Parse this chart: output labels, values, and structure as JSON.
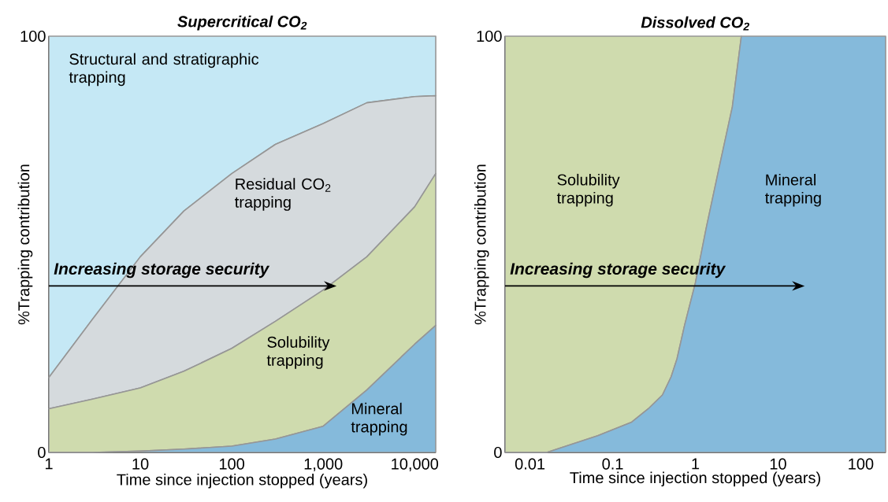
{
  "chart_data": [
    {
      "type": "area",
      "title": "Supercritical CO$_{2}$",
      "xlabel": "Time since injection stopped (years)",
      "ylabel": "%Trapping contribution",
      "stacked": true,
      "log": "x",
      "x": [
        1,
        3,
        10,
        30,
        100,
        300,
        1000,
        3000,
        10000,
        17000
      ],
      "xlim": [
        1,
        17000
      ],
      "xticks": [
        1,
        10,
        100,
        {
          "value": 1000,
          "label": "1,000"
        },
        {
          "value": 10000,
          "label": "10,000"
        }
      ],
      "ylim": [
        0,
        100
      ],
      "yticks": [
        0,
        100
      ],
      "annotations": [
        "Increasing storage security"
      ],
      "series": [
        {
          "name": "Mineral trapping",
          "color": "#85badb",
          "values": [
            0,
            0,
            0.3,
            0.8,
            1.5,
            3.2,
            6.3,
            15,
            26,
            30.5
          ]
        },
        {
          "name": "Solubility trapping",
          "color": "#cfdbae",
          "values": [
            10.5,
            12.8,
            15.2,
            18.7,
            23.5,
            28.3,
            32.7,
            32,
            33,
            36.5
          ]
        },
        {
          "name": "Residual CO$_{2}$ trapping",
          "color": "#d5dadd",
          "values": [
            7.5,
            19.2,
            31.5,
            38.5,
            42,
            42.5,
            40,
            37,
            26.5,
            18.7
          ]
        },
        {
          "name": "Structural and stratigraphic trapping",
          "color": "#c5e8f5",
          "values": [
            82,
            68,
            53,
            42,
            33,
            26,
            21,
            16,
            14.5,
            14.3
          ]
        }
      ]
    },
    {
      "type": "area",
      "title": "Dissolved CO$_{2}$",
      "xlabel": "Time since injection stopped (years)",
      "ylabel": "%Trapping contribution",
      "stacked": true,
      "log": "x",
      "x": [
        0.005,
        0.016,
        0.066,
        0.17,
        0.27,
        0.4,
        0.51,
        0.6,
        0.74,
        1,
        1.35,
        1.9,
        2.8,
        3.6,
        200
      ],
      "xlim": [
        0.005,
        200
      ],
      "xticks": [
        0.01,
        0.1,
        1,
        10,
        100
      ],
      "ylim": [
        0,
        100
      ],
      "yticks": [
        0,
        100
      ],
      "annotations": [
        "Increasing storage security"
      ],
      "series": [
        {
          "name": "Mineral trapping",
          "color": "#85badb",
          "values": [
            0,
            0,
            4,
            7.3,
            10.5,
            13.8,
            18.2,
            22.5,
            30.5,
            40.7,
            53.8,
            67.6,
            83,
            100,
            100
          ]
        },
        {
          "name": "Solubility trapping",
          "color": "#cfdbae",
          "values": [
            100,
            100,
            96,
            92.7,
            89.5,
            86.2,
            81.8,
            77.5,
            69.5,
            59.3,
            46.2,
            32.4,
            17,
            0,
            null
          ]
        }
      ]
    }
  ]
}
